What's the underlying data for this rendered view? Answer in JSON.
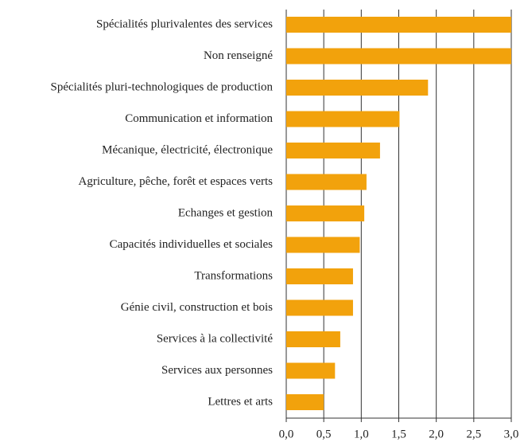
{
  "chart_data": {
    "type": "bar",
    "orientation": "horizontal",
    "categories": [
      "Spécialités plurivalentes des services",
      "Non renseigné",
      "Spécialités pluri-technologiques de production",
      "Communication et information",
      "Mécanique, électricité, électronique",
      "Agriculture, pêche, forêt et espaces verts",
      "Echanges et gestion",
      "Capacités individuelles et sociales",
      "Transformations",
      "Génie civil, construction et bois",
      "Services à la collectivité",
      "Services aux personnes",
      "Lettres et arts"
    ],
    "values": [
      3.0,
      3.0,
      1.89,
      1.51,
      1.25,
      1.07,
      1.04,
      0.98,
      0.89,
      0.89,
      0.72,
      0.65,
      0.5
    ],
    "color": "#f2a20c",
    "xlim": [
      0,
      3
    ],
    "xticks": [
      {
        "value": 0,
        "label": "0,0"
      },
      {
        "value": 0.5,
        "label": "0,5"
      },
      {
        "value": 1,
        "label": "1,0"
      },
      {
        "value": 1.5,
        "label": "1,5"
      },
      {
        "value": 2,
        "label": "2,0"
      },
      {
        "value": 2.5,
        "label": "2,5"
      },
      {
        "value": 3,
        "label": "3,0"
      }
    ],
    "grid": true
  }
}
